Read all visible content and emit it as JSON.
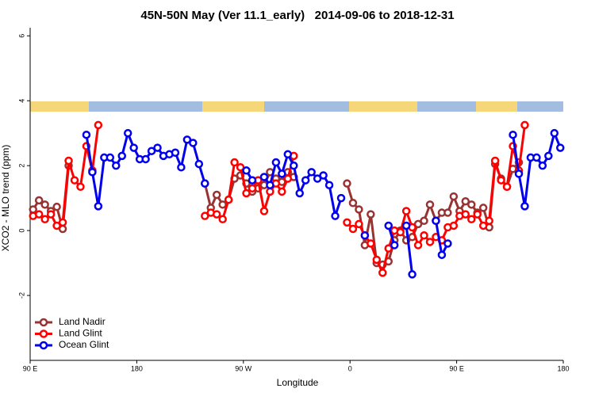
{
  "chart_data": {
    "type": "line",
    "title": "45N-50N May (Ver 11.1_early)   2014-09-06 to 2018-12-31",
    "x_label": "Longitude",
    "y_label": "XCO2 - MLO trend (ppm)",
    "xlim": [
      90,
      540
    ],
    "xticks": [
      {
        "value": 90,
        "label": "90 E"
      },
      180,
      {
        "value": 270,
        "label": "90 W"
      },
      {
        "value": 360,
        "label": "0"
      },
      {
        "value": 450,
        "label": "90 E"
      },
      {
        "value": 540,
        "label": "180"
      }
    ],
    "ylim": [
      -4,
      6.25
    ],
    "yticks": [
      -2,
      0,
      2,
      4,
      6
    ],
    "legend": "bottom-left",
    "x": [
      92.5,
      97.5,
      102.5,
      107.5,
      112.5,
      117.5,
      122.5,
      127.5,
      132.5,
      137.5,
      142.5,
      147.5,
      152.5,
      157.5,
      162.5,
      167.5,
      172.5,
      177.5,
      182.5,
      187.5,
      192.5,
      197.5,
      202.5,
      207.5,
      212.5,
      217.5,
      222.5,
      227.5,
      232.5,
      237.5,
      242.5,
      247.5,
      252.5,
      257.5,
      262.5,
      267.5,
      272.5,
      277.5,
      282.5,
      287.5,
      292.5,
      297.5,
      302.5,
      307.5,
      312.5,
      317.5,
      322.5,
      327.5,
      332.5,
      337.5,
      342.5,
      347.5,
      352.5,
      357.5,
      362.5,
      367.5,
      372.5,
      377.5,
      382.5,
      387.5,
      392.5,
      397.5,
      402.5,
      407.5,
      412.5,
      417.5,
      422.5,
      427.5,
      432.5,
      437.5,
      442.5,
      447.5,
      452.5,
      457.5,
      462.5,
      467.5,
      472.5,
      477.5,
      482.5,
      487.5,
      492.5,
      497.5,
      502.5,
      507.5,
      512.5,
      517.5,
      522.5,
      527.5,
      532.5,
      537.5
    ],
    "series": [
      {
        "name": "Land Nadir",
        "color": "#993333",
        "values": [
          0.65,
          0.93,
          0.8,
          0.6,
          0.73,
          0.05,
          2.0,
          null,
          null,
          null,
          null,
          null,
          null,
          null,
          null,
          null,
          null,
          null,
          null,
          null,
          null,
          null,
          null,
          null,
          null,
          null,
          null,
          null,
          null,
          1.45,
          0.7,
          1.1,
          0.8,
          0.95,
          1.6,
          1.7,
          1.45,
          1.2,
          1.3,
          1.4,
          1.8,
          1.6,
          1.5,
          1.8,
          1.65,
          null,
          null,
          null,
          null,
          null,
          null,
          null,
          null,
          1.45,
          0.85,
          0.65,
          -0.45,
          0.5,
          -1.0,
          -1.05,
          -0.95,
          -0.3,
          0.0,
          -0.3,
          -0.2,
          0.2,
          0.3,
          0.8,
          0.3,
          0.55,
          0.55,
          1.05,
          0.6,
          0.9,
          0.8,
          0.55,
          0.7,
          0.1,
          2.05,
          1.6,
          1.35,
          1.9,
          2.1,
          null,
          null,
          null,
          null,
          null,
          null,
          null
        ]
      },
      {
        "name": "Land Glint",
        "color": "#ff0000",
        "values": [
          0.45,
          0.5,
          0.35,
          0.5,
          0.15,
          0.25,
          2.15,
          1.55,
          1.35,
          2.6,
          1.85,
          3.25,
          null,
          null,
          null,
          null,
          null,
          null,
          null,
          null,
          null,
          null,
          null,
          null,
          null,
          null,
          null,
          null,
          null,
          0.45,
          0.55,
          0.5,
          0.35,
          0.95,
          2.1,
          1.95,
          1.15,
          1.3,
          1.55,
          0.6,
          1.2,
          1.45,
          1.2,
          1.6,
          2.3,
          null,
          null,
          null,
          null,
          null,
          null,
          null,
          null,
          0.25,
          0.05,
          0.2,
          -0.15,
          -0.4,
          -0.9,
          -1.3,
          -0.55,
          0.0,
          -0.05,
          0.6,
          0.1,
          -0.45,
          -0.15,
          -0.35,
          -0.2,
          -0.3,
          0.1,
          0.15,
          0.45,
          0.5,
          0.35,
          0.5,
          0.15,
          0.3,
          2.15,
          1.55,
          1.35,
          2.6,
          1.85,
          3.25,
          null,
          null,
          null,
          null,
          null,
          null
        ]
      },
      {
        "name": "Ocean Glint",
        "color": "#0000ee",
        "values": [
          null,
          null,
          null,
          null,
          null,
          null,
          null,
          null,
          null,
          2.95,
          1.8,
          0.75,
          2.25,
          2.25,
          2.0,
          2.3,
          3.0,
          2.55,
          2.2,
          2.2,
          2.45,
          2.55,
          2.3,
          2.35,
          2.4,
          1.95,
          2.8,
          2.7,
          2.05,
          1.45,
          null,
          null,
          null,
          null,
          null,
          null,
          1.85,
          1.55,
          null,
          1.65,
          1.4,
          2.1,
          1.75,
          2.35,
          2.0,
          1.15,
          1.55,
          1.8,
          1.6,
          1.7,
          1.4,
          0.45,
          1.0,
          null,
          null,
          null,
          -0.15,
          null,
          null,
          null,
          0.15,
          -0.45,
          null,
          0.15,
          -1.35,
          null,
          null,
          null,
          0.3,
          -0.75,
          -0.4,
          null,
          null,
          null,
          null,
          null,
          null,
          null,
          null,
          null,
          null,
          2.95,
          1.75,
          0.75,
          2.25,
          2.25,
          2.0,
          2.3,
          3.0,
          2.55
        ]
      }
    ]
  }
}
